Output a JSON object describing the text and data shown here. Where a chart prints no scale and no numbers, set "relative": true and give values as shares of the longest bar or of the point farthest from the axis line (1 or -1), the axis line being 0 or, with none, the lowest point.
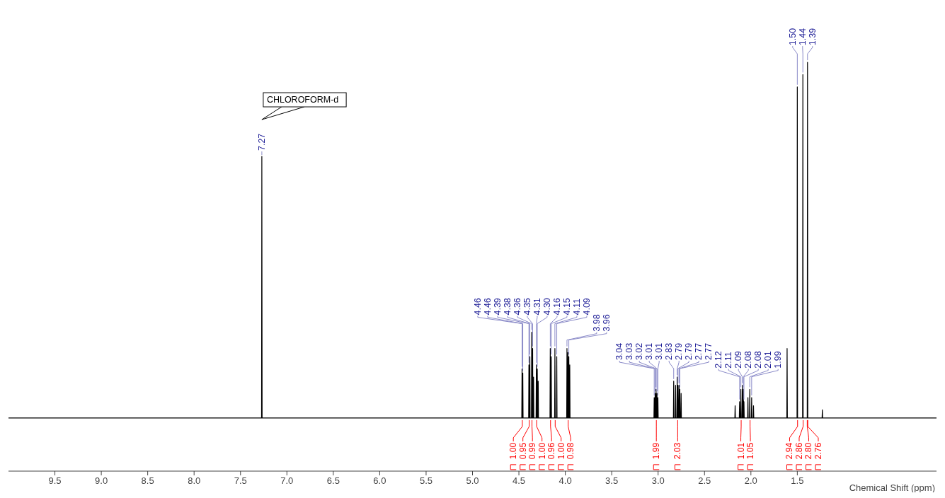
{
  "chart_data": {
    "type": "line",
    "xlabel": "Chemical Shift (ppm)",
    "relative": true,
    "color": "#000000",
    "xlim": [
      10,
      0
    ],
    "xticks": [
      9.5,
      {
        "value": 9,
        "label": "9.0"
      },
      8.5,
      {
        "value": 8,
        "label": "8.0"
      },
      7.5,
      {
        "value": 7,
        "label": "7.0"
      },
      6.5,
      {
        "value": 6,
        "label": "6.0"
      },
      5.5,
      {
        "value": 5,
        "label": "5.0"
      },
      4.5,
      {
        "value": 4,
        "label": "4.0"
      },
      3.5,
      {
        "value": 3,
        "label": "3.0"
      },
      2.5,
      {
        "value": 2,
        "label": "2.0"
      },
      1.5
    ],
    "x": [
      10,
      7.273,
      7.27,
      7.267,
      4.469,
      4.466,
      4.463,
      4.461,
      4.458,
      4.455,
      4.395,
      4.392,
      4.389,
      4.385,
      4.382,
      4.379,
      4.365,
      4.362,
      4.359,
      4.355,
      4.352,
      4.349,
      4.345,
      4.342,
      4.339,
      4.315,
      4.312,
      4.309,
      4.305,
      4.302,
      4.299,
      4.295,
      4.292,
      4.289,
      4.165,
      4.162,
      4.159,
      4.155,
      4.152,
      4.149,
      4.115,
      4.112,
      4.109,
      4.095,
      4.092,
      4.089,
      3.985,
      3.982,
      3.979,
      3.975,
      3.972,
      3.969,
      3.965,
      3.962,
      3.959,
      3.955,
      3.952,
      3.949,
      3.045,
      3.042,
      3.039,
      3.035,
      3.032,
      3.029,
      3.025,
      3.022,
      3.019,
      3.015,
      3.012,
      3.009,
      3.005,
      3.002,
      2.999,
      2.835,
      2.832,
      2.829,
      2.815,
      2.812,
      2.809,
      2.797,
      2.794,
      2.791,
      2.789,
      2.786,
      2.783,
      2.777,
      2.774,
      2.771,
      2.769,
      2.766,
      2.763,
      2.755,
      2.752,
      2.749,
      2.173,
      2.17,
      2.167,
      2.125,
      2.122,
      2.119,
      2.111,
      2.108,
      2.105,
      2.095,
      2.092,
      2.089,
      2.085,
      2.082,
      2.079,
      2.078,
      2.075,
      2.072,
      2.035,
      2.032,
      2.029,
      2.015,
      2.012,
      2.009,
      1.995,
      1.992,
      1.989,
      1.975,
      1.972,
      1.969,
      1.613,
      1.61,
      1.607,
      1.503,
      1.5,
      1.497,
      1.443,
      1.44,
      1.437,
      1.393,
      1.39,
      1.387,
      1.233,
      1.23,
      1.227,
      0
    ],
    "values": [
      0.13,
      0.13,
      0.77,
      0.13,
      0.13,
      0.25,
      0.13,
      0.13,
      0.24,
      0.13,
      0.13,
      0.26,
      0.13,
      0.13,
      0.28,
      0.13,
      0.13,
      0.34,
      0.13,
      0.13,
      0.3,
      0.13,
      0.13,
      0.23,
      0.13,
      0.13,
      0.26,
      0.13,
      0.13,
      0.25,
      0.13,
      0.13,
      0.22,
      0.13,
      0.13,
      0.3,
      0.13,
      0.13,
      0.28,
      0.13,
      0.13,
      0.3,
      0.13,
      0.13,
      0.28,
      0.13,
      0.13,
      0.3,
      0.13,
      0.13,
      0.29,
      0.13,
      0.13,
      0.28,
      0.13,
      0.13,
      0.26,
      0.13,
      0.13,
      0.18,
      0.13,
      0.13,
      0.19,
      0.13,
      0.13,
      0.2,
      0.13,
      0.13,
      0.19,
      0.13,
      0.13,
      0.18,
      0.13,
      0.13,
      0.22,
      0.13,
      0.13,
      0.21,
      0.13,
      0.13,
      0.23,
      0.13,
      0.13,
      0.21,
      0.13,
      0.13,
      0.21,
      0.13,
      0.13,
      0.2,
      0.13,
      0.13,
      0.19,
      0.13,
      0.13,
      0.16,
      0.13,
      0.13,
      0.17,
      0.13,
      0.13,
      0.2,
      0.13,
      0.13,
      0.21,
      0.13,
      0.13,
      0.2,
      0.13,
      0.13,
      0.17,
      0.13,
      0.13,
      0.18,
      0.13,
      0.13,
      0.2,
      0.13,
      0.13,
      0.18,
      0.13,
      0.13,
      0.16,
      0.13,
      0.13,
      0.3,
      0.13,
      0.13,
      0.94,
      0.13,
      0.13,
      0.97,
      0.13,
      0.13,
      1,
      0.13,
      0.13,
      0.15,
      0.13,
      0.13
    ],
    "annotations": [
      "CHLOROFORM-d",
      {
        "text": "7.27",
        "x": 7.27,
        "y": 0.77
      },
      {
        "text": "4.46",
        "x": 4.466,
        "y": 0.25
      },
      {
        "text": "4.46",
        "x": 4.458,
        "y": 0.24
      },
      {
        "text": "4.39",
        "x": 4.392,
        "y": 0.26
      },
      {
        "text": "4.38",
        "x": 4.382,
        "y": 0.28
      },
      {
        "text": "4.36",
        "x": 4.362,
        "y": 0.34
      },
      {
        "text": "4.35",
        "x": 4.352,
        "y": 0.3
      },
      {
        "text": "4.31",
        "x": 4.312,
        "y": 0.26
      },
      {
        "text": "4.30",
        "x": 4.302,
        "y": 0.25
      },
      {
        "text": "4.16",
        "x": 4.162,
        "y": 0.3
      },
      {
        "text": "4.15",
        "x": 4.152,
        "y": 0.28
      },
      {
        "text": "4.11",
        "x": 4.112,
        "y": 0.3
      },
      {
        "text": "4.09",
        "x": 4.092,
        "y": 0.28
      },
      {
        "text": "3.98",
        "x": 3.982,
        "y": 0.3
      },
      {
        "text": "3.96",
        "x": 3.962,
        "y": 0.28
      },
      {
        "text": "3.04",
        "x": 3.042,
        "y": 0.18
      },
      {
        "text": "3.03",
        "x": 3.032,
        "y": 0.19
      },
      {
        "text": "3.02",
        "x": 3.022,
        "y": 0.2
      },
      {
        "text": "3.01",
        "x": 3.012,
        "y": 0.19
      },
      {
        "text": "3.01",
        "x": 3.002,
        "y": 0.18
      },
      {
        "text": "2.83",
        "x": 2.832,
        "y": 0.22
      },
      {
        "text": "2.79",
        "x": 2.794,
        "y": 0.23
      },
      {
        "text": "2.79",
        "x": 2.786,
        "y": 0.21
      },
      {
        "text": "2.77",
        "x": 2.774,
        "y": 0.21
      },
      {
        "text": "2.77",
        "x": 2.766,
        "y": 0.2
      },
      {
        "text": "2.12",
        "x": 2.122,
        "y": 0.17
      },
      {
        "text": "2.11",
        "x": 2.108,
        "y": 0.2
      },
      {
        "text": "2.09",
        "x": 2.092,
        "y": 0.21
      },
      {
        "text": "2.08",
        "x": 2.082,
        "y": 0.2
      },
      {
        "text": "2.08",
        "x": 2.075,
        "y": 0.17
      },
      {
        "text": "2.01",
        "x": 2.012,
        "y": 0.2
      },
      {
        "text": "1.99",
        "x": 1.992,
        "y": 0.18
      },
      {
        "text": "1.50",
        "x": 1.5,
        "y": 0.94
      },
      {
        "text": "1.44",
        "x": 1.44,
        "y": 0.97
      },
      {
        "text": "1.39",
        "x": 1.39,
        "y": 1
      },
      {
        "text": "1.00",
        "x": 4.463,
        "y": 0.13
      },
      {
        "text": "0.95",
        "x": 4.389,
        "y": 0.13
      },
      {
        "text": "0.99",
        "x": 4.359,
        "y": 0.13
      },
      {
        "text": "1.00",
        "x": 4.309,
        "y": 0.13
      },
      {
        "text": "0.96",
        "x": 4.159,
        "y": 0.13
      },
      {
        "text": "1.00",
        "x": 4.109,
        "y": 0.13
      },
      {
        "text": "0.98",
        "x": 3.969,
        "y": 0.13
      },
      {
        "text": "1.99",
        "x": 3.019,
        "y": 0.13
      },
      {
        "text": "2.03",
        "x": 2.789,
        "y": 0.13
      },
      {
        "text": "1.01",
        "x": 2.105,
        "y": 0.13
      },
      {
        "text": "1.05",
        "x": 2.009,
        "y": 0.13
      },
      {
        "text": "2.94",
        "x": 1.497,
        "y": 0.13
      },
      {
        "text": "2.86",
        "x": 1.437,
        "y": 0.13
      },
      {
        "text": "2.80",
        "x": 1.393,
        "y": 0.13
      },
      {
        "text": "2.76",
        "x": 1.387,
        "y": 0.13
      }
    ]
  }
}
